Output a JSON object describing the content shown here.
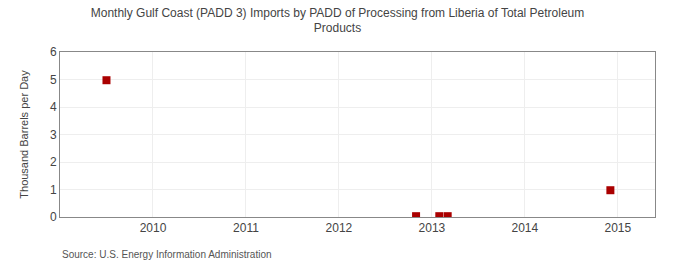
{
  "chart_data": {
    "type": "scatter",
    "title": "Monthly Gulf Coast (PADD 3) Imports by PADD of Processing from Liberia of Total Petroleum\nProducts",
    "ylabel": "Thousand Barrels per Day",
    "annotations": [
      "Source: U.S. Energy Information Administration"
    ],
    "x": [
      2009.5,
      2012.83,
      2013.08,
      2013.17,
      2014.92
    ],
    "values": [
      4.974,
      0.03,
      0.03,
      0.03,
      0.974
    ],
    "color": "#aa0000",
    "marker": "square",
    "xlim": [
      2009.0,
      2015.4
    ],
    "xticks": [
      2010,
      2011,
      2012,
      2013,
      2014,
      2015
    ],
    "ylim": [
      0,
      6
    ],
    "yticks": [
      0,
      1,
      2,
      3,
      4,
      5,
      6
    ],
    "grid": true
  }
}
